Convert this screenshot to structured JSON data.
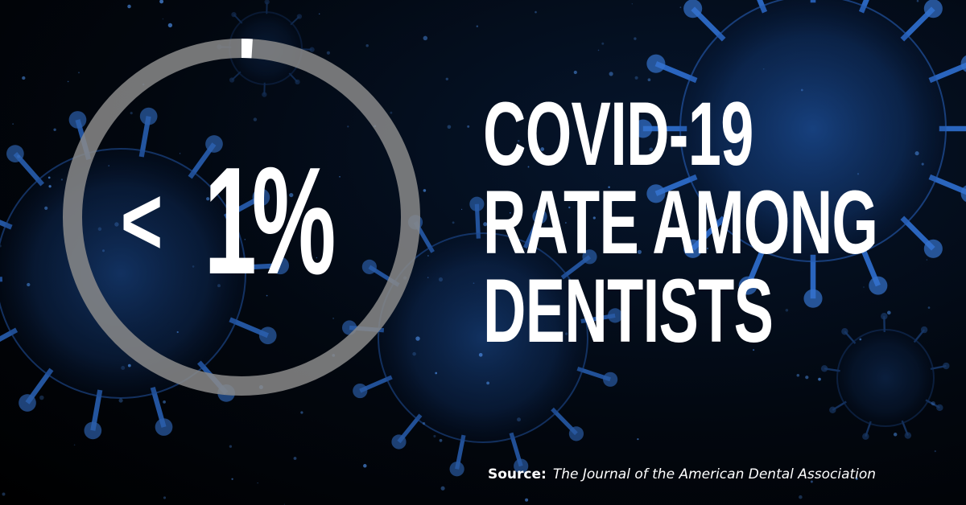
{
  "statistic": {
    "symbol": "<",
    "value": "1%",
    "progress_fraction": 0.01
  },
  "headline": {
    "lines": [
      "COVID-19",
      "RATE AMONG",
      "DENTISTS"
    ]
  },
  "source": {
    "label": "Source:",
    "reference": "The Journal of the American Dental Association"
  },
  "colors": {
    "background": "#000000",
    "virus": "#1f5fbf",
    "ring_track": "#8a8a8a",
    "ring_fill": "#ffffff",
    "text": "#ffffff"
  },
  "background_image": "coronavirus-particles"
}
